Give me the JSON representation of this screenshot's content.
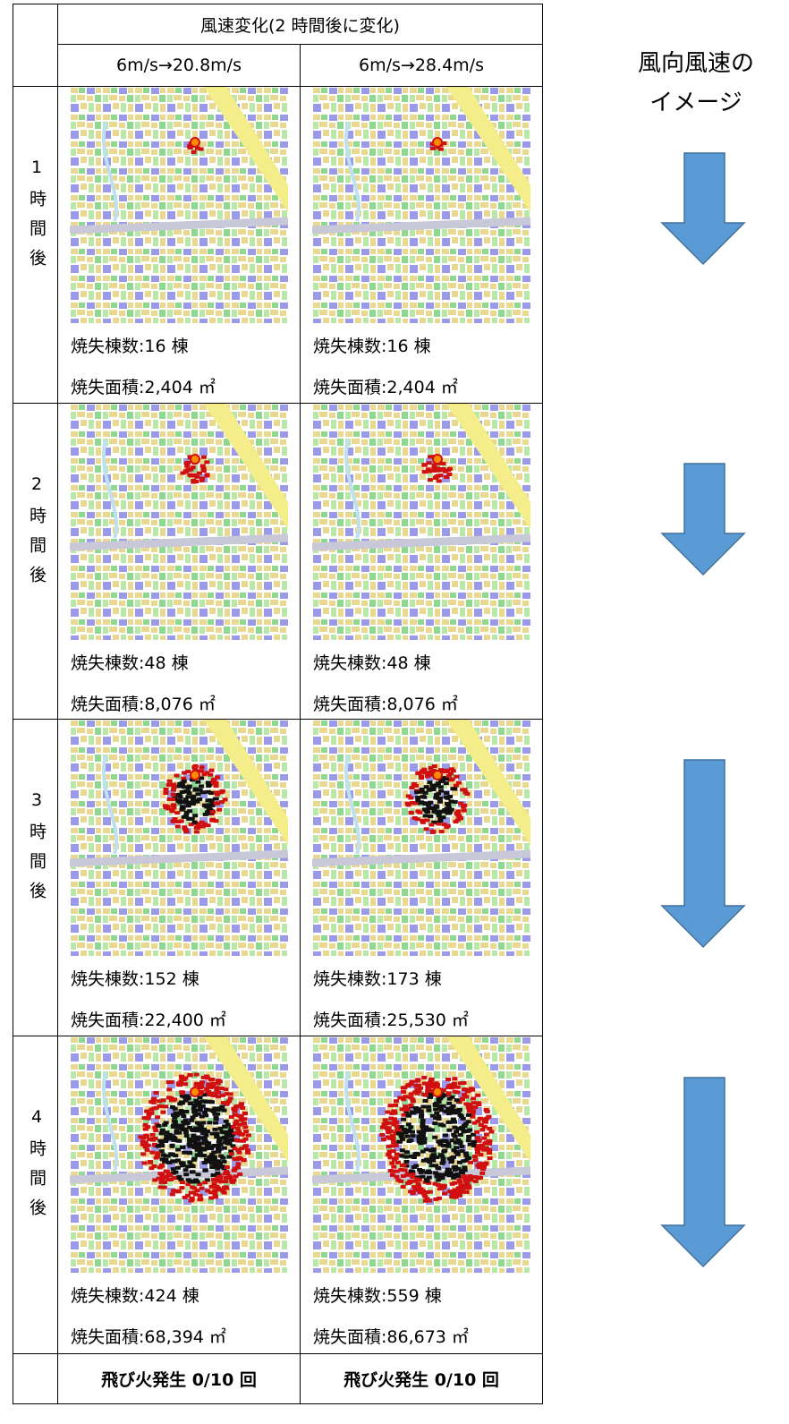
{
  "header": {
    "group_title": "風速変化(2 時間後に変化)",
    "columns": [
      "6m/s→20.8m/s",
      "6m/s→28.4m/s"
    ]
  },
  "rows": [
    {
      "label": "1時間後",
      "cells": [
        {
          "buildings": "焼失棟数:16 棟",
          "area": "焼失面積:2,404 ㎡"
        },
        {
          "buildings": "焼失棟数:16 棟",
          "area": "焼失面積:2,404 ㎡"
        }
      ]
    },
    {
      "label": "2時間後",
      "cells": [
        {
          "buildings": "焼失棟数:48 棟",
          "area": "焼失面積:8,076 ㎡"
        },
        {
          "buildings": "焼失棟数:48 棟",
          "area": "焼失面積:8,076 ㎡"
        }
      ]
    },
    {
      "label": "3時間後",
      "cells": [
        {
          "buildings": "焼失棟数:152 棟",
          "area": "焼失面積:22,400 ㎡"
        },
        {
          "buildings": "焼失棟数:173 棟",
          "area": "焼失面積:25,530 ㎡"
        }
      ]
    },
    {
      "label": "4時間後",
      "cells": [
        {
          "buildings": "焼失棟数:424 棟",
          "area": "焼失面積:68,394 ㎡"
        },
        {
          "buildings": "焼失棟数:559 棟",
          "area": "焼失面積:86,673 ㎡"
        }
      ]
    }
  ],
  "footer": {
    "cells": [
      "飛び火発生 0/10 回",
      "飛び火発生 0/10 回"
    ]
  },
  "legend": {
    "title_lines": [
      "風向風速の",
      "イメージ"
    ]
  }
}
